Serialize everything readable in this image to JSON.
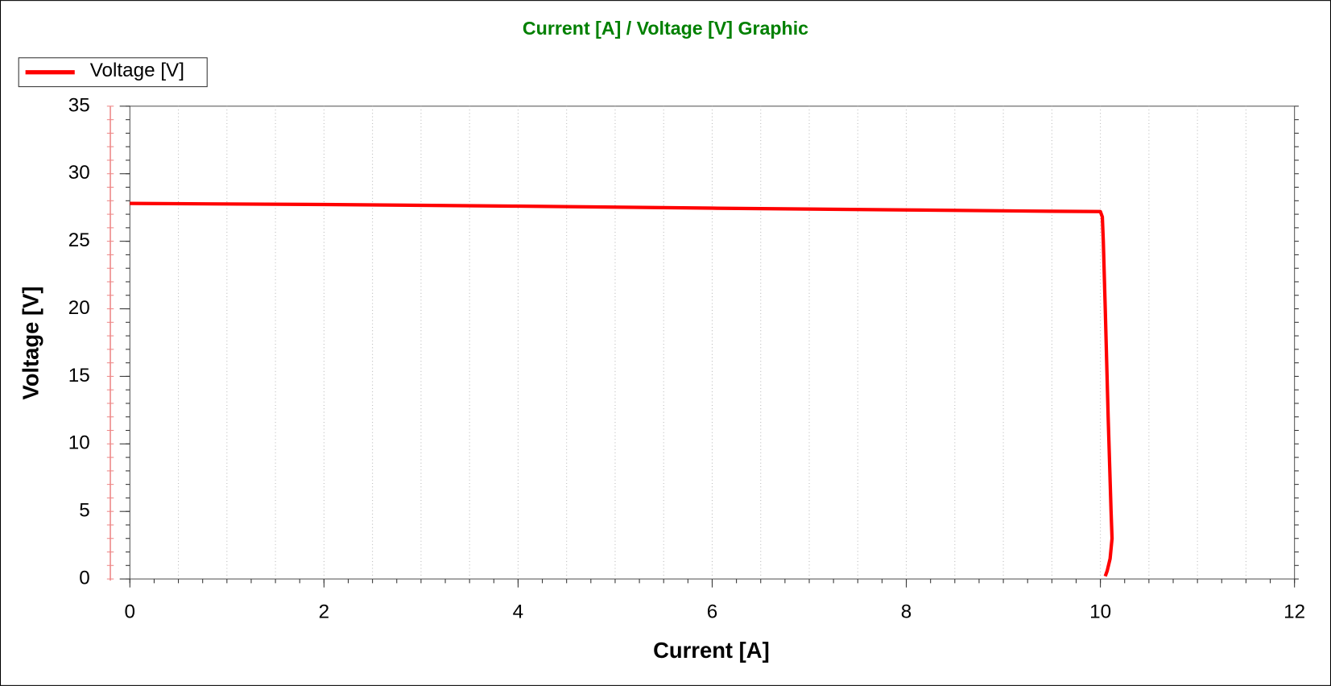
{
  "chart_data": {
    "type": "line",
    "title": "Current [A] / Voltage [V] Graphic",
    "x_label": "Current [A]",
    "y_label": "Voltage [V]",
    "x": [
      0,
      2,
      4,
      6,
      8,
      9.5,
      10.0,
      10.02,
      10.03,
      10.05,
      10.08,
      10.11,
      10.12,
      10.1,
      10.07,
      10.05
    ],
    "series": [
      {
        "name": "Voltage [V]",
        "color": "#ff0000",
        "values": [
          27.8,
          27.72,
          27.6,
          27.45,
          27.32,
          27.22,
          27.2,
          26.8,
          25,
          20,
          12,
          5,
          3,
          1.5,
          0.6,
          0.2
        ]
      }
    ],
    "xlim": [
      0,
      12
    ],
    "xticks": [
      0,
      2,
      4,
      6,
      8,
      10,
      12
    ],
    "ylim": [
      0,
      35
    ],
    "yticks": [
      0,
      5,
      10,
      15,
      20,
      25,
      30,
      35
    ],
    "grid": true,
    "legend": "top-left",
    "title_color": "#008000"
  }
}
